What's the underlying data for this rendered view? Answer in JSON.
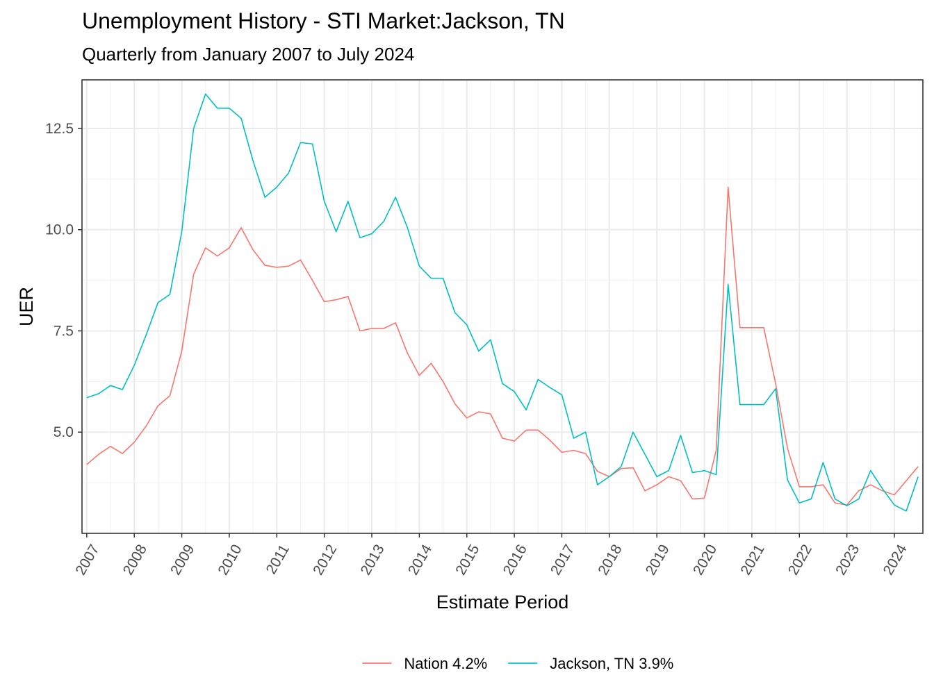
{
  "chart_data": {
    "type": "line",
    "title": "Unemployment History - STI Market:Jackson, TN",
    "subtitle": "Quarterly from January 2007 to July 2024",
    "xlabel": "Estimate Period",
    "ylabel": "UER",
    "xlim": [
      2007,
      2024.5
    ],
    "ylim": [
      2.5,
      13.7
    ],
    "yticks": [
      5.0,
      7.5,
      10.0,
      12.5
    ],
    "ytick_labels": [
      "5.0",
      "7.5",
      "10.0",
      "12.5"
    ],
    "xticks": [
      "2007",
      "2008",
      "2009",
      "2010",
      "2011",
      "2012",
      "2013",
      "2014",
      "2015",
      "2016",
      "2017",
      "2018",
      "2019",
      "2020",
      "2021",
      "2022",
      "2023",
      "2024"
    ],
    "grid": true,
    "legend_position": "bottom",
    "x": [
      2007.0,
      2007.25,
      2007.5,
      2007.75,
      2008.0,
      2008.25,
      2008.5,
      2008.75,
      2009.0,
      2009.25,
      2009.5,
      2009.75,
      2010.0,
      2010.25,
      2010.5,
      2010.75,
      2011.0,
      2011.25,
      2011.5,
      2011.75,
      2012.0,
      2012.25,
      2012.5,
      2012.75,
      2013.0,
      2013.25,
      2013.5,
      2013.75,
      2014.0,
      2014.25,
      2014.5,
      2014.75,
      2015.0,
      2015.25,
      2015.5,
      2015.75,
      2016.0,
      2016.25,
      2016.5,
      2016.75,
      2017.0,
      2017.25,
      2017.5,
      2017.75,
      2018.0,
      2018.25,
      2018.5,
      2018.75,
      2019.0,
      2019.25,
      2019.5,
      2019.75,
      2020.0,
      2020.25,
      2020.5,
      2020.75,
      2021.0,
      2021.25,
      2021.5,
      2021.75,
      2022.0,
      2022.25,
      2022.5,
      2022.75,
      2023.0,
      2023.25,
      2023.5,
      2023.75,
      2024.0,
      2024.25,
      2024.5
    ],
    "series": [
      {
        "name": "Nation 4.2%",
        "color": "#F8766D",
        "values": [
          4.2,
          4.45,
          4.65,
          4.47,
          4.75,
          5.15,
          5.65,
          5.9,
          7.0,
          8.9,
          9.55,
          9.35,
          9.55,
          10.05,
          9.5,
          9.12,
          9.07,
          9.1,
          9.25,
          8.75,
          8.22,
          8.27,
          8.35,
          7.5,
          7.56,
          7.56,
          7.7,
          6.95,
          6.4,
          6.7,
          6.25,
          5.7,
          5.35,
          5.5,
          5.45,
          4.85,
          4.78,
          5.05,
          5.05,
          4.8,
          4.5,
          4.55,
          4.47,
          4.03,
          3.9,
          4.1,
          4.12,
          3.55,
          3.7,
          3.9,
          3.8,
          3.35,
          3.37,
          4.55,
          11.05,
          7.58,
          7.58,
          7.58,
          6.2,
          4.6,
          3.65,
          3.65,
          3.7,
          3.25,
          3.2,
          3.55,
          3.7,
          3.55,
          3.45,
          3.8,
          4.15
        ]
      },
      {
        "name": "Jackson, TN 3.9%",
        "color": "#00BFC4",
        "values": [
          5.85,
          5.95,
          6.15,
          6.05,
          6.65,
          7.4,
          8.2,
          8.4,
          9.95,
          12.5,
          13.35,
          13.0,
          13.0,
          12.75,
          11.7,
          10.8,
          11.05,
          11.4,
          12.15,
          12.12,
          10.7,
          9.95,
          10.7,
          9.8,
          9.9,
          10.2,
          10.8,
          10.05,
          9.1,
          8.8,
          8.8,
          7.95,
          7.65,
          7.0,
          7.28,
          6.2,
          6.0,
          5.55,
          6.3,
          6.1,
          5.92,
          4.85,
          5.0,
          3.7,
          3.9,
          4.15,
          5.0,
          4.45,
          3.9,
          4.05,
          4.92,
          4.0,
          4.05,
          3.95,
          8.65,
          5.68,
          5.68,
          5.68,
          6.07,
          3.82,
          3.25,
          3.35,
          4.25,
          3.35,
          3.18,
          3.35,
          4.05,
          3.6,
          3.2,
          3.05,
          3.9
        ]
      }
    ]
  }
}
